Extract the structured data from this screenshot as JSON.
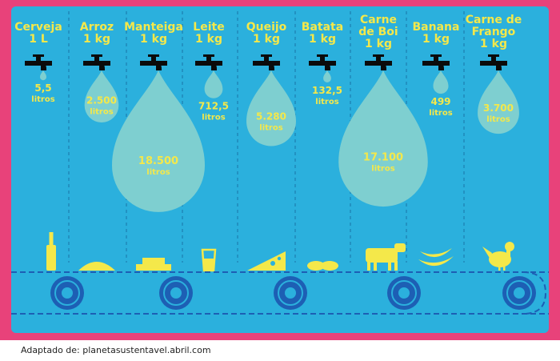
{
  "chart_data": {
    "type": "bar",
    "categories": [
      {
        "name": "Cerveja",
        "unit": "1 L"
      },
      {
        "name": "Arroz",
        "unit": "1 kg"
      },
      {
        "name": "Manteiga",
        "unit": "1 kg"
      },
      {
        "name": "Leite",
        "unit": "1 kg"
      },
      {
        "name": "Queijo",
        "unit": "1 kg"
      },
      {
        "name": "Batata",
        "unit": "1 kg"
      },
      {
        "name": "Carne\nde Boi",
        "unit": "1 kg"
      },
      {
        "name": "Banana",
        "unit": "1 kg"
      },
      {
        "name": "Carne de\nFrango",
        "unit": "1 kg"
      }
    ],
    "values": [
      5.5,
      2500,
      18500,
      712.5,
      5280,
      132.5,
      17100,
      499,
      3700
    ],
    "value_labels": [
      "5,5",
      "2.500",
      "18.500",
      "712,5",
      "5.280",
      "132,5",
      "17.100",
      "499",
      "3.700"
    ],
    "value_unit": "litros",
    "icons": [
      "beer-bottle-icon",
      "rice-icon",
      "butter-icon",
      "milk-glass-icon",
      "cheese-icon",
      "potato-icon",
      "cow-icon",
      "banana-icon",
      "chicken-icon"
    ]
  },
  "credit": "Adaptado de: planetasustentavel.abril.com",
  "colors": {
    "frame": "#e8427a",
    "panel": "#2bb0dd",
    "drop": "#7ecfd0",
    "label": "#f4e84a",
    "tap": "#0b0b0b",
    "belt": "#1d5fb4",
    "icon": "#f4e84a",
    "divider": "#1d7fb0"
  }
}
